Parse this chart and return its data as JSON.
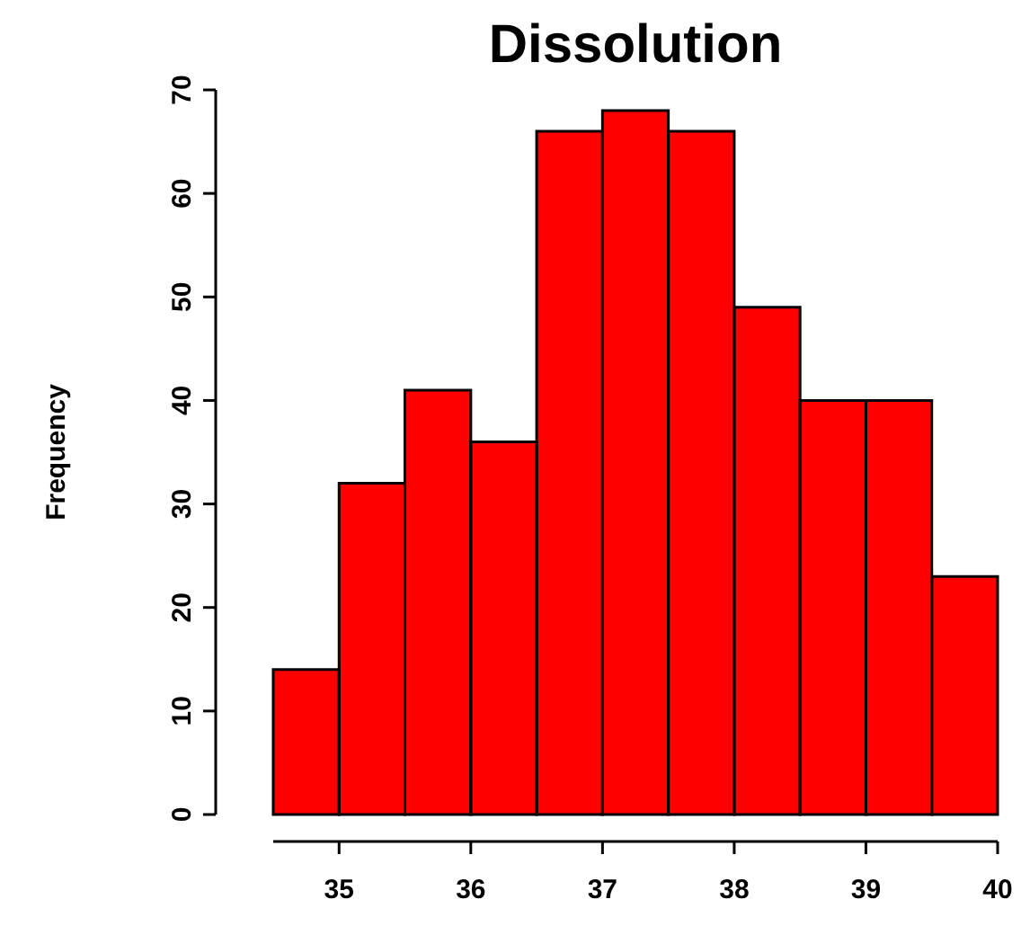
{
  "chart_data": {
    "type": "histogram",
    "title": "Dissolution",
    "ylabel": "Frequency",
    "bins": [
      34.5,
      35,
      35.5,
      36,
      36.5,
      37,
      37.5,
      38,
      38.5,
      39,
      39.5,
      40
    ],
    "values": [
      14,
      32,
      41,
      36,
      66,
      68,
      66,
      49,
      40,
      40,
      23
    ],
    "color": "#ff0000",
    "xlim": [
      34.5,
      40
    ],
    "xticks": [
      35,
      36,
      37,
      38,
      39,
      40
    ],
    "ylim": [
      0,
      70
    ],
    "yticks": [
      0,
      10,
      20,
      30,
      40,
      50,
      60,
      70
    ],
    "grid": false,
    "legend": false
  }
}
